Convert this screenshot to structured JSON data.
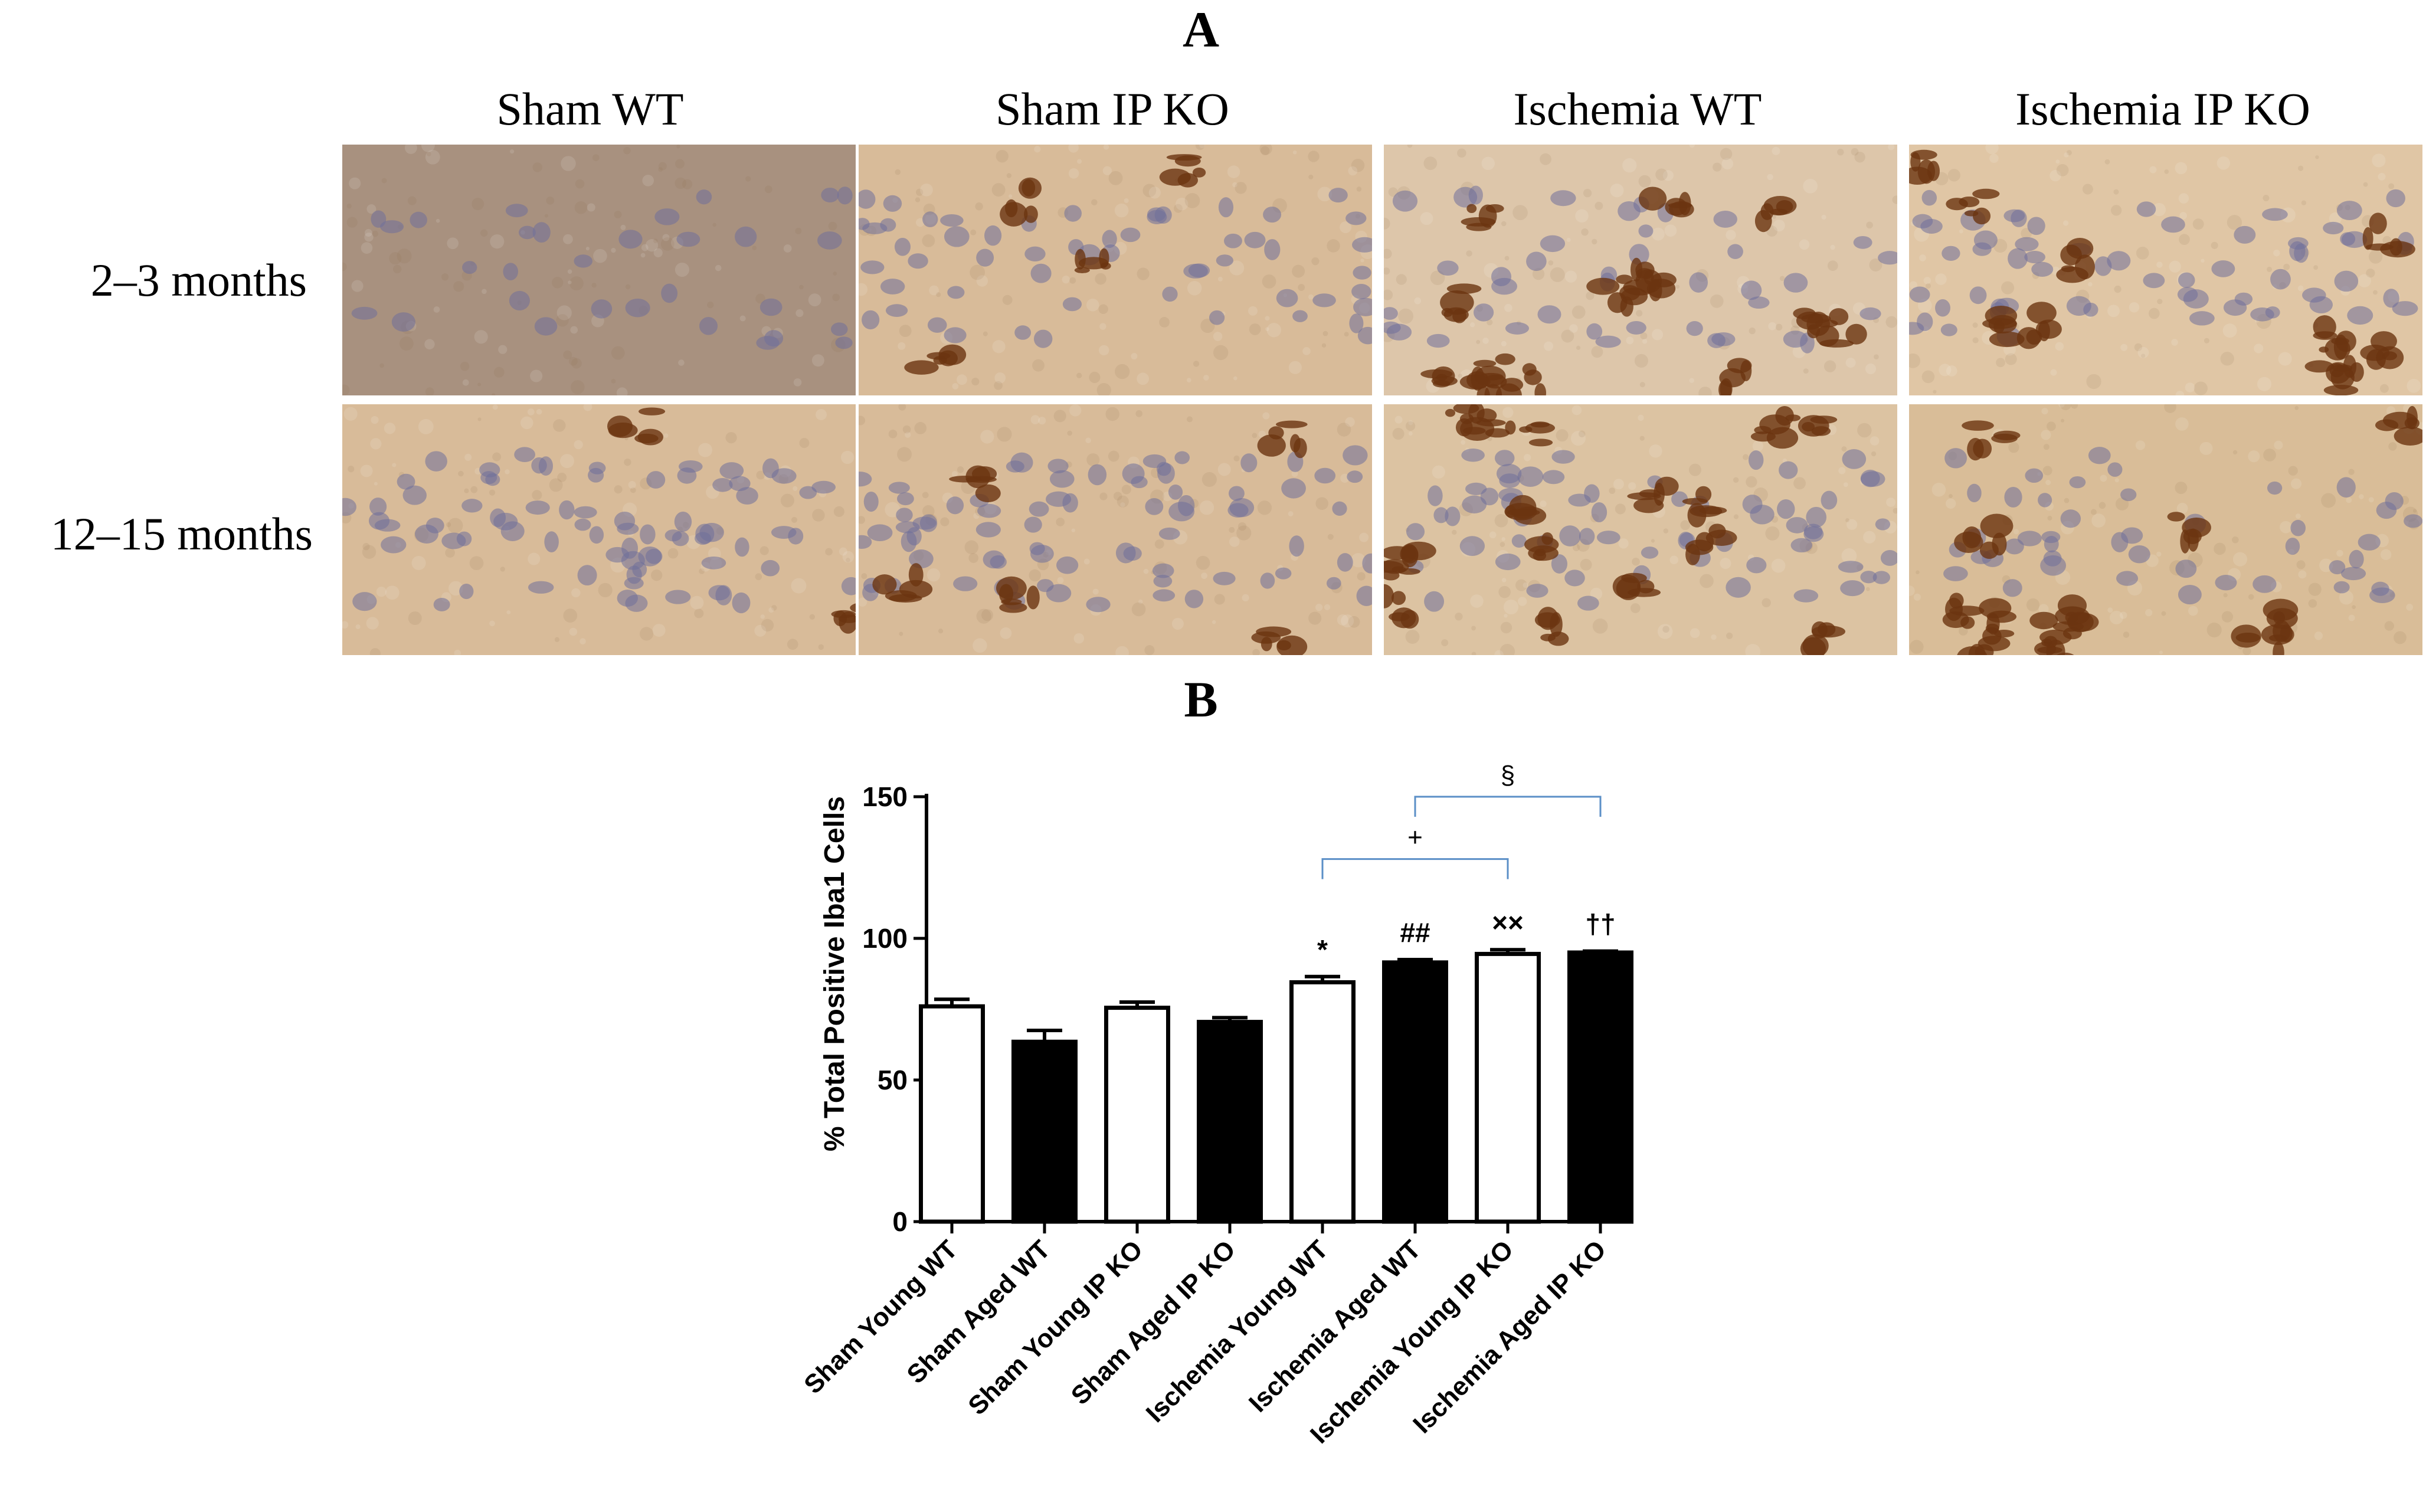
{
  "panel_a": {
    "letter": "A",
    "columns": [
      "Sham WT",
      "Sham IP KO",
      "Ischemia WT",
      "Ischemia IP KO"
    ],
    "rows": [
      "2–3 months",
      "12–15 months"
    ],
    "colors": {
      "background_purple": "#a8917f",
      "tissue_tan": "#d8bb99",
      "nuclei_blue": "#6f6f9a",
      "microglia_brown": "#6b3410"
    }
  },
  "panel_b": {
    "letter": "B"
  },
  "chart_data": {
    "type": "bar",
    "ylabel": "% Total Positive Iba1 Cells",
    "ylim": [
      0,
      150
    ],
    "yticks": [
      0,
      50,
      100,
      150
    ],
    "categories": [
      "Sham Young WT",
      "Sham Aged WT",
      "Sham Young IP KO",
      "Sham Aged IP KO",
      "Ischemia Young WT",
      "Ischemia Aged WT",
      "Ischemia Young IP KO",
      "Ischemia Aged IP KO"
    ],
    "values": [
      76,
      63.5,
      75.5,
      70.5,
      84.5,
      91.5,
      94.5,
      95
    ],
    "errors": [
      2.5,
      4,
      2,
      1.5,
      2,
      1,
      1.5,
      0.5
    ],
    "fills": [
      "white",
      "black",
      "white",
      "black",
      "white",
      "black",
      "white",
      "black"
    ],
    "significance": [
      "",
      "",
      "",
      "",
      "*",
      "##",
      "××",
      "††"
    ],
    "brackets": [
      {
        "from": 4,
        "to": 6,
        "label": "+",
        "level": 128
      },
      {
        "from": 5,
        "to": 7,
        "label": "§",
        "level": 150
      }
    ],
    "bracket_color": "#5b8fc7"
  }
}
